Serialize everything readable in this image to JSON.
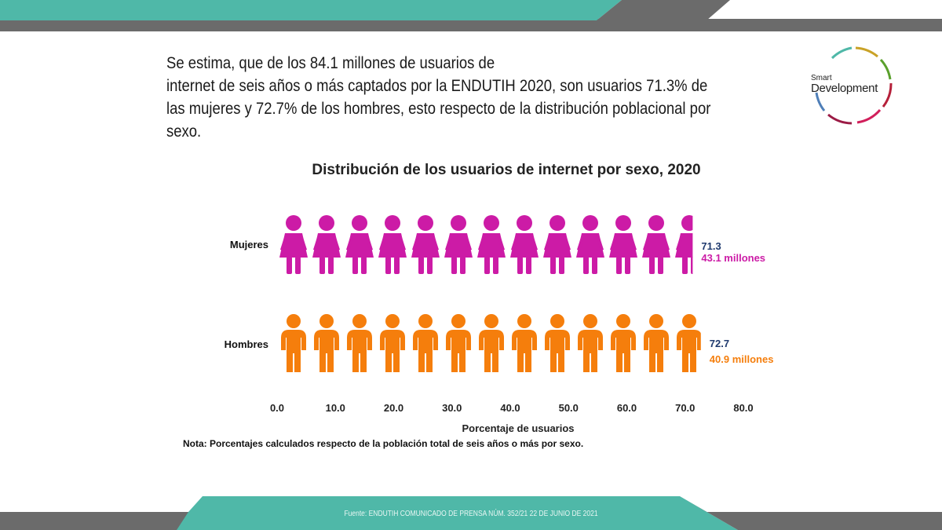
{
  "intro": {
    "line1": "Se estima, que de los 84.1 millones de usuarios de",
    "line2": "internet de seis años o más captados por la ENDUTIH 2020, son usuarios 71.3% de",
    "line3": "las mujeres y 72.7% de los hombres, esto respecto de la distribución poblacional por",
    "line4": "sexo."
  },
  "logo": {
    "small": "Smart",
    "big": "Development"
  },
  "colors": {
    "teal": "#4fb8a8",
    "gray": "#6b6b6b",
    "mujeres": "#cc1ba6",
    "hombres": "#f57e0c",
    "value": "#1f3a6e"
  },
  "chart_data": {
    "type": "bar",
    "title": "Distribución de los usuarios de internet por sexo, 2020",
    "xlabel": "Porcentaje de usuarios",
    "xlim": [
      0,
      80
    ],
    "xticks": [
      "0.0",
      "10.0",
      "20.0",
      "30.0",
      "40.0",
      "50.0",
      "60.0",
      "70.0",
      "80.0"
    ],
    "categories": [
      "Mujeres",
      "Hombres"
    ],
    "values": [
      71.3,
      72.7
    ],
    "value_labels": [
      "71.3",
      "72.7"
    ],
    "millones_labels": [
      "43.1 millones",
      "40.9 millones"
    ],
    "note": "Nota: Porcentajes calculados respecto de la población total de seis años o más por sexo."
  },
  "footer": {
    "source": "Fuente: ENDUTIH COMUNICADO DE PRENSA NÚM. 352/21 22 DE JUNIO DE 2021"
  }
}
